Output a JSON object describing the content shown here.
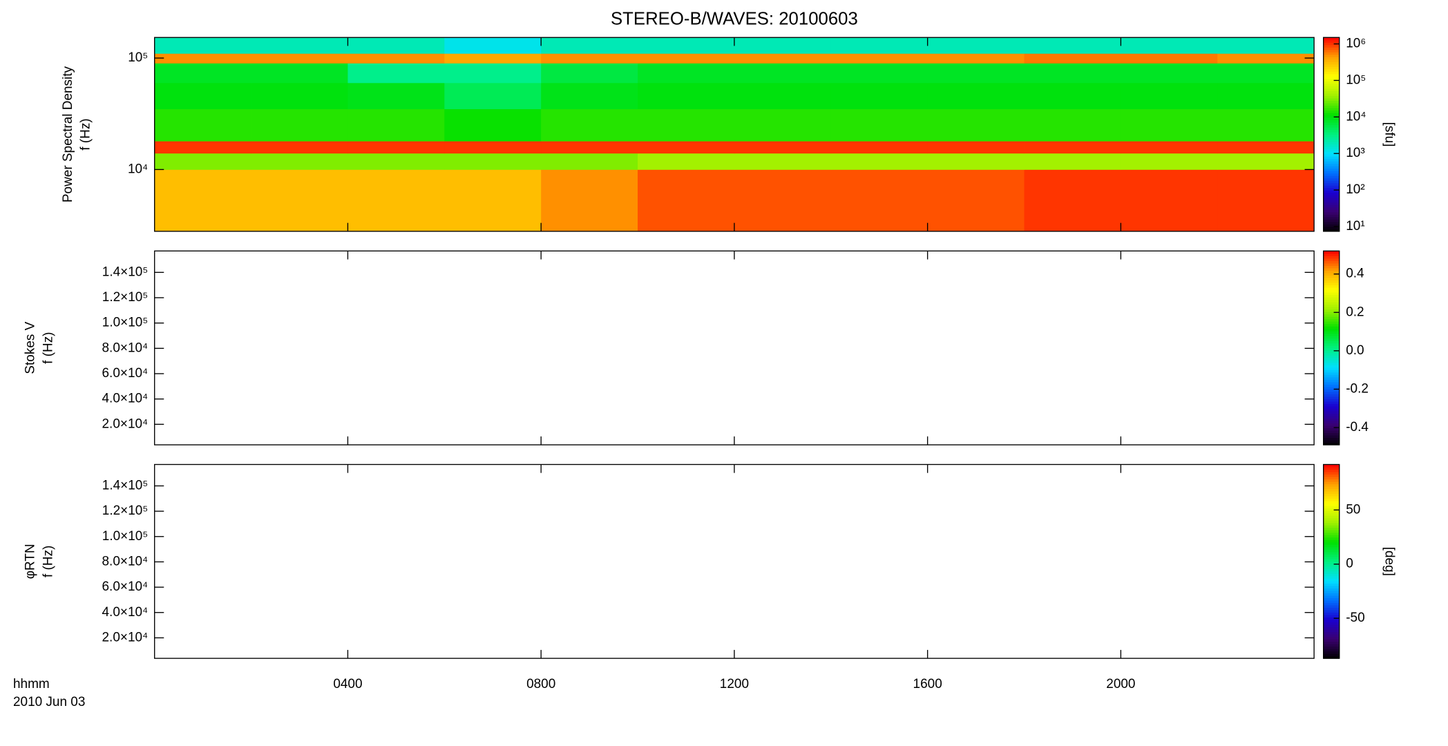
{
  "title": "STEREO-B/WAVES: 20100603",
  "time_label": "hhmm",
  "date_label": "2010 Jun 03",
  "colormap": [
    "#000000",
    "#3a0070",
    "#1a00d0",
    "#0070ff",
    "#00e0ff",
    "#00f080",
    "#00e000",
    "#a0f000",
    "#ffff00",
    "#ffa000",
    "#ff0000"
  ],
  "x_axis": {
    "xlim": [
      0,
      24
    ],
    "xticks": [
      {
        "value": 4,
        "label": "0400"
      },
      {
        "value": 8,
        "label": "0800"
      },
      {
        "value": 12,
        "label": "1200"
      },
      {
        "value": 16,
        "label": "1600"
      },
      {
        "value": 20,
        "label": "2000"
      }
    ]
  },
  "chart_data": [
    {
      "type": "heatmap",
      "ylabel": [
        "Power Spectral Density",
        "f (Hz)"
      ],
      "yscale": "log",
      "ylim": [
        2790,
        153000
      ],
      "yticks": [
        {
          "value": 10000,
          "label": "10⁴"
        },
        {
          "value": 100000,
          "label": "10⁵"
        }
      ],
      "colorbar": {
        "scale": "log",
        "clim": [
          7.4,
          1500000
        ],
        "label": "[sfu]",
        "ticks": [
          {
            "value": 10,
            "label": "10¹"
          },
          {
            "value": 100,
            "label": "10²"
          },
          {
            "value": 1000,
            "label": "10³"
          },
          {
            "value": 10000,
            "label": "10⁴"
          },
          {
            "value": 100000,
            "label": "10⁵"
          },
          {
            "value": 1000000,
            "label": "10⁶"
          }
        ]
      },
      "x_edges": [
        0,
        2,
        4,
        6,
        8,
        10,
        12,
        14,
        16,
        18,
        20,
        22,
        24
      ],
      "y_edges": [
        2790,
        10000,
        14000,
        18000,
        35000,
        60000,
        90000,
        110000,
        153000
      ],
      "z": [
        [
          300000,
          300000,
          300000,
          300000,
          500000,
          800000,
          800000,
          800000,
          800000,
          1000000,
          1000000,
          1000000
        ],
        [
          30000,
          30000,
          30000,
          30000,
          30000,
          40000,
          40000,
          40000,
          40000,
          40000,
          40000,
          40000
        ],
        [
          1000000,
          1000000,
          1000000,
          1000000,
          1000000,
          1000000,
          1000000,
          1000000,
          1000000,
          1000000,
          1000000,
          1000000
        ],
        [
          15000,
          15000,
          15000,
          12000,
          15000,
          15000,
          15000,
          15000,
          15000,
          15000,
          15000,
          15000
        ],
        [
          10000,
          10000,
          9000,
          5000,
          9000,
          10000,
          10000,
          10000,
          10000,
          10000,
          10000,
          10000
        ],
        [
          8000,
          8000,
          3000,
          3000,
          6000,
          8000,
          8000,
          8000,
          8000,
          8000,
          8000,
          8000
        ],
        [
          500000,
          500000,
          500000,
          400000,
          500000,
          500000,
          500000,
          500000,
          500000,
          600000,
          600000,
          500000
        ],
        [
          2000,
          2000,
          2000,
          1200,
          2000,
          2000,
          2000,
          2000,
          2000,
          2000,
          2000,
          2000
        ]
      ]
    },
    {
      "type": "heatmap",
      "ylabel": [
        "Stokes V",
        "f (Hz)"
      ],
      "yscale": "linear",
      "ylim": [
        3800,
        156900
      ],
      "yticks": [
        {
          "value": 20000,
          "label": "2.0×10⁴"
        },
        {
          "value": 40000,
          "label": "4.0×10⁴"
        },
        {
          "value": 60000,
          "label": "6.0×10⁴"
        },
        {
          "value": 80000,
          "label": "8.0×10⁴"
        },
        {
          "value": 100000,
          "label": "1.0×10⁵"
        },
        {
          "value": 120000,
          "label": "1.2×10⁵"
        },
        {
          "value": 140000,
          "label": "1.4×10⁵"
        }
      ],
      "colorbar": {
        "scale": "linear",
        "clim": [
          -0.49,
          0.52
        ],
        "ticks": [
          -0.4,
          -0.2,
          {
            "value": 0,
            "label": "0.0"
          },
          0.2,
          0.4
        ]
      }
    },
    {
      "type": "heatmap",
      "ylabel": [
        "φRTN",
        "f (Hz)"
      ],
      "yscale": "linear",
      "ylim": [
        3800,
        156900
      ],
      "yticks": [
        {
          "value": 20000,
          "label": "2.0×10⁴"
        },
        {
          "value": 40000,
          "label": "4.0×10⁴"
        },
        {
          "value": 60000,
          "label": "6.0×10⁴"
        },
        {
          "value": 80000,
          "label": "8.0×10⁴"
        },
        {
          "value": 100000,
          "label": "1.0×10⁵"
        },
        {
          "value": 120000,
          "label": "1.2×10⁵"
        },
        {
          "value": 140000,
          "label": "1.4×10⁵"
        }
      ],
      "colorbar": {
        "scale": "linear",
        "clim": [
          -87,
          92
        ],
        "label": "[deg]",
        "ticks": [
          -50,
          0,
          50
        ]
      }
    }
  ]
}
